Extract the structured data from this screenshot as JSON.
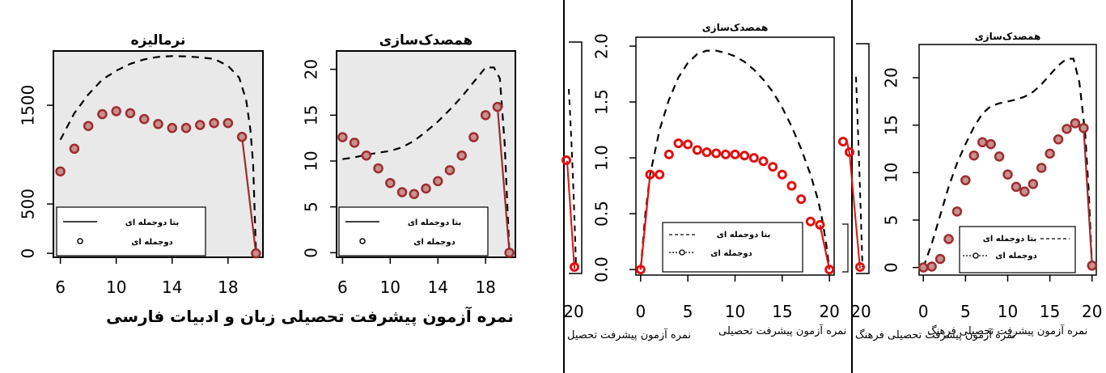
{
  "left_xlabel": "نمره آزمون پیشرفت تحصیلی زبان و ادبیات فارسی",
  "strip_fragments": {
    "a_tick": "20",
    "a_label": "نمره آزمون پیشرفت تحصیل",
    "b_tick": "20",
    "b_label": "نمره آزمون پیشرفت تحصیلی فرهنگ"
  },
  "chart_data": [
    {
      "type": "line",
      "title": "نرمالیزه",
      "xlabel": "",
      "ylabel": "",
      "xlim": [
        5.5,
        20.5
      ],
      "ylim": [
        -40,
        2050
      ],
      "xticks": [
        "6",
        "10",
        "14",
        "18"
      ],
      "yticks": [
        "0",
        "500",
        "1500"
      ],
      "grid": false,
      "legend": {
        "placement": "bottom-left",
        "entries": [
          "بتا دوجمله ای",
          "دوجمله ای"
        ]
      },
      "series": [
        {
          "name": "بتا دوجمله ای",
          "style": "dashed",
          "x": [
            6,
            7,
            8,
            9,
            10,
            11,
            12,
            13,
            14,
            15,
            16,
            17,
            18,
            18.8,
            19.3,
            19.6,
            19.8,
            20
          ],
          "y": [
            1150,
            1420,
            1610,
            1760,
            1850,
            1920,
            1965,
            1990,
            1998,
            1995,
            1985,
            1970,
            1900,
            1780,
            1550,
            1250,
            900,
            0
          ]
        },
        {
          "name": "دوجمله ای",
          "style": "points",
          "x": [
            6,
            7,
            8,
            9,
            10,
            11,
            12,
            13,
            14,
            15,
            16,
            17,
            18,
            19,
            20
          ],
          "y": [
            830,
            1060,
            1290,
            1410,
            1440,
            1420,
            1360,
            1310,
            1270,
            1270,
            1300,
            1320,
            1320,
            1180,
            0
          ]
        }
      ]
    },
    {
      "type": "line",
      "title": "همصدک‌سازی",
      "xlabel": "",
      "ylabel": "",
      "xlim": [
        5.5,
        20.5
      ],
      "ylim": [
        -0.5,
        22
      ],
      "xticks": [
        "6",
        "10",
        "14",
        "18"
      ],
      "yticks": [
        "0",
        "5",
        "10",
        "15",
        "20"
      ],
      "grid": false,
      "legend": {
        "placement": "bottom-left",
        "entries": [
          "بتا دوجمله ای",
          "دوجمله ای"
        ]
      },
      "series": [
        {
          "name": "بتا دوجمله ای",
          "style": "dashed",
          "x": [
            6,
            7,
            8,
            9,
            10,
            11,
            12,
            13,
            14,
            15,
            16,
            17,
            18,
            18.7,
            19.2,
            19.6,
            20
          ],
          "y": [
            10.2,
            10.4,
            10.7,
            10.9,
            11.1,
            11.5,
            12.2,
            13.2,
            14.3,
            15.6,
            17.0,
            18.6,
            20.2,
            20.2,
            19.0,
            12.0,
            0
          ]
        },
        {
          "name": "دوجمله ای",
          "style": "points",
          "x": [
            6,
            7,
            8,
            9,
            10,
            11,
            12,
            13,
            14,
            15,
            16,
            17,
            18,
            19,
            20
          ],
          "y": [
            12.6,
            12.0,
            10.6,
            9.2,
            7.6,
            6.6,
            6.4,
            7.0,
            7.8,
            9.0,
            10.6,
            12.6,
            15.0,
            15.9,
            0
          ]
        }
      ]
    },
    {
      "type": "line",
      "title": "همصدک‌سازی",
      "xlabel": "نمره آزمون پیشرفت تحصیلی",
      "ylabel": "",
      "xlim": [
        -0.5,
        20.5
      ],
      "ylim": [
        -0.05,
        2.08
      ],
      "xticks": [
        "0",
        "5",
        "10",
        "15",
        "20"
      ],
      "yticks": [
        "0.0",
        "0.5",
        "1.0",
        "1.5",
        "2.0"
      ],
      "grid": false,
      "legend": {
        "placement": "bottom-left",
        "entries": [
          "بتا دوجمله ای",
          "دوجمله ای"
        ]
      },
      "series": [
        {
          "name": "بتا دوجمله ای",
          "style": "dashed",
          "x": [
            0,
            0.5,
            1,
            2,
            3,
            4,
            5,
            6,
            7,
            8,
            9,
            10,
            11,
            12,
            13,
            14,
            15,
            16,
            17,
            18,
            18.8,
            19.3,
            19.7,
            20
          ],
          "y": [
            0,
            0.5,
            0.85,
            1.25,
            1.52,
            1.72,
            1.85,
            1.93,
            1.96,
            1.96,
            1.94,
            1.91,
            1.86,
            1.79,
            1.7,
            1.59,
            1.45,
            1.28,
            1.08,
            0.85,
            0.62,
            0.42,
            0.2,
            0
          ]
        },
        {
          "name": "دوجمله ای",
          "style": "points",
          "x": [
            0,
            1,
            2,
            3,
            4,
            5,
            6,
            7,
            8,
            9,
            10,
            11,
            12,
            13,
            14,
            15,
            16,
            17,
            18,
            19,
            20
          ],
          "y": [
            0,
            0.85,
            0.85,
            1.03,
            1.13,
            1.12,
            1.07,
            1.05,
            1.04,
            1.03,
            1.03,
            1.02,
            1.0,
            0.97,
            0.92,
            0.85,
            0.75,
            0.63,
            0.43,
            0.4,
            0
          ]
        }
      ]
    },
    {
      "type": "line",
      "title": "همصدک‌سازی",
      "xlabel": "نمره آزمون پیشرفت تحصیلی فرهنگ",
      "ylabel": "",
      "xlim": [
        -0.5,
        20.5
      ],
      "ylim": [
        -0.8,
        23.5
      ],
      "xticks": [
        "0",
        "5",
        "10",
        "15",
        "20"
      ],
      "yticks": [
        "0",
        "5",
        "10",
        "15",
        "20"
      ],
      "grid": false,
      "legend": {
        "placement": "bottom-right",
        "entries": [
          "بتا دوجمله ای",
          "دوجمله ای"
        ]
      },
      "series": [
        {
          "name": "بتا دوجمله ای",
          "style": "dashed",
          "x": [
            0,
            1,
            2,
            3,
            4,
            5,
            6,
            7,
            8,
            9,
            10,
            11,
            12,
            13,
            14,
            15,
            16,
            17,
            17.8,
            18.5,
            19.2,
            19.6,
            20
          ],
          "y": [
            0,
            2.5,
            5.5,
            8.5,
            11.0,
            13.0,
            14.8,
            16.2,
            17.0,
            17.3,
            17.5,
            17.7,
            18.0,
            18.5,
            19.3,
            20.3,
            21.3,
            22.0,
            22.0,
            19.5,
            14.0,
            8.0,
            0
          ]
        },
        {
          "name": "دوجمله ای",
          "style": "points",
          "x": [
            0,
            1,
            2,
            3,
            4,
            5,
            6,
            7,
            8,
            9,
            10,
            11,
            12,
            13,
            14,
            15,
            16,
            17,
            18,
            19,
            20
          ],
          "y": [
            0,
            0.1,
            0.9,
            3.0,
            5.9,
            9.2,
            11.8,
            13.2,
            13.0,
            11.7,
            9.8,
            8.5,
            8.0,
            8.8,
            10.5,
            12.0,
            13.5,
            14.6,
            15.2,
            14.7,
            0.2
          ]
        }
      ]
    }
  ]
}
